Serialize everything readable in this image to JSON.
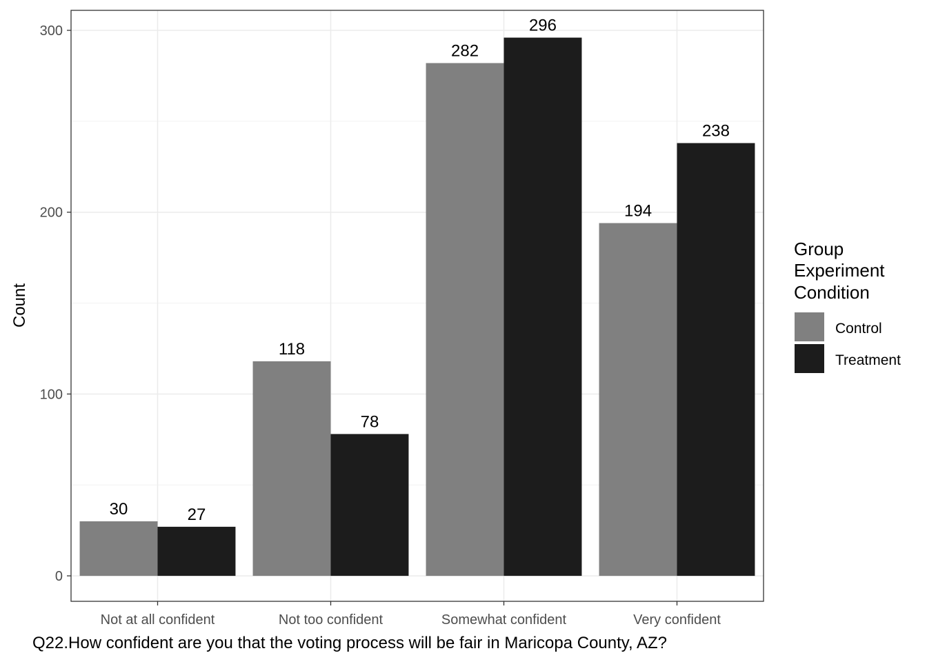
{
  "chart_data": {
    "type": "bar",
    "categories": [
      "Not at all confident",
      "Not too confident",
      "Somewhat confident",
      "Very confident"
    ],
    "series": [
      {
        "name": "Control",
        "values": [
          30,
          118,
          282,
          194
        ],
        "color": "#808080"
      },
      {
        "name": "Treatment",
        "values": [
          27,
          78,
          296,
          238
        ],
        "color": "#1c1c1c"
      }
    ],
    "title": "",
    "xlabel": "Q22.How confident are you that the voting process will be fair in Maricopa County, AZ?",
    "ylabel": "Count",
    "ylim": [
      -14,
      311
    ],
    "yticks": [
      0,
      100,
      200,
      300
    ],
    "grid": true,
    "data_labels": true,
    "legend": {
      "title_lines": [
        "Group",
        "Experiment",
        "Condition"
      ],
      "placement": "right"
    }
  }
}
